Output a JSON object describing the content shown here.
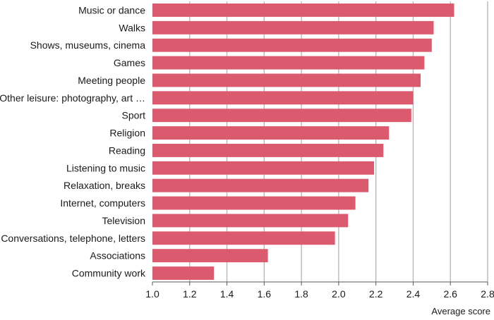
{
  "chart_data": {
    "type": "bar",
    "orientation": "horizontal",
    "categories": [
      "Music or dance",
      "Walks",
      "Shows, museums, cinema",
      "Games",
      "Meeting people",
      "Other leisure: photography, art …",
      "Sport",
      "Religion",
      "Reading",
      "Listening to music",
      "Relaxation, breaks",
      "Internet, computers",
      "Television",
      "Conversations, telephone, letters",
      "Associations",
      "Community work"
    ],
    "values": [
      2.62,
      2.51,
      2.5,
      2.46,
      2.44,
      2.4,
      2.39,
      2.27,
      2.24,
      2.19,
      2.16,
      2.09,
      2.05,
      1.98,
      1.62,
      1.33
    ],
    "xlabel": "Average score",
    "xlim": [
      1.0,
      2.8
    ],
    "xticks": [
      "1.0",
      "1.2",
      "1.4",
      "1.6",
      "1.8",
      "2.0",
      "2.2",
      "2.4",
      "2.6",
      "2.8"
    ],
    "grid": "vertical",
    "bar_color": "#dc5a6e",
    "grid_color": "#b4b4b4"
  }
}
